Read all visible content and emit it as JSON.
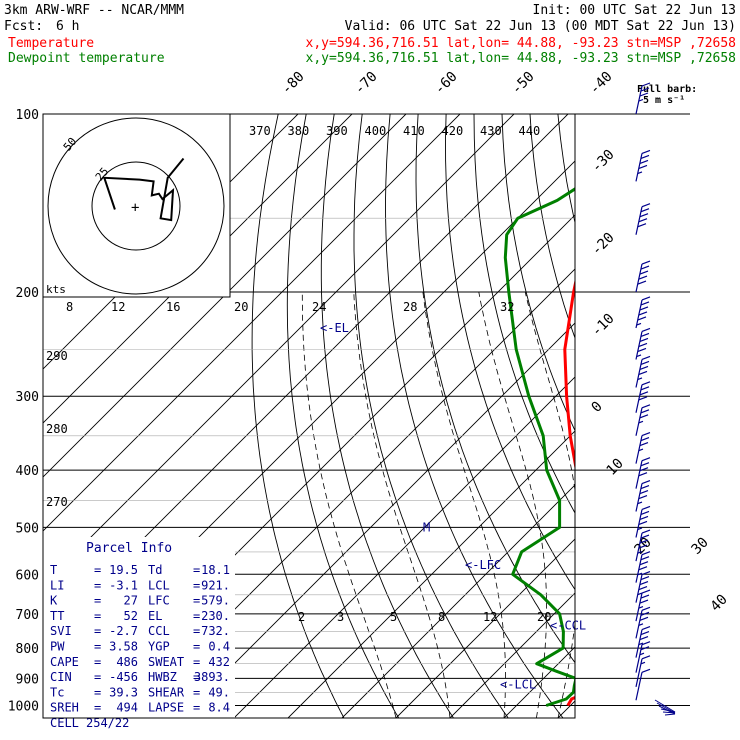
{
  "header": {
    "line1_left": "3km ARW-WRF -- NCAR/MMM",
    "line1_right": "Init: 00 UTC Sat 22 Jun 13",
    "line2_left_label": "Fcst:",
    "line2_left_value": "6 h",
    "line2_right": "Valid: 06 UTC Sat 22 Jun 13 (00 MDT Sat 22 Jun 13)",
    "line3_name": "Temperature",
    "line3_loc": "x,y=594.36,716.51   lat,lon= 44.88, -93.23  stn=MSP ,72658",
    "line4_name": "Dewpoint temperature",
    "line4_loc": "x,y=594.36,716.51   lat,lon= 44.88, -93.23  stn=MSP ,72658"
  },
  "colors": {
    "temperature": "#ff0000",
    "dewpoint": "#008000",
    "axis": "#000000",
    "annotation": "#00008b",
    "gridline": "#aaaaaa"
  },
  "wind_key": {
    "line1": "Full barb:",
    "line2": "5 m s⁻¹"
  },
  "parcel_info": {
    "title": "Parcel Info",
    "rows": [
      {
        "l": "T",
        "lv": "19.5",
        "r": "Td",
        "rv": "18.1"
      },
      {
        "l": "LI",
        "lv": "-3.1",
        "r": "LCL",
        "rv": "921."
      },
      {
        "l": "K",
        "lv": "27",
        "r": "LFC",
        "rv": "579."
      },
      {
        "l": "TT",
        "lv": "52",
        "r": "EL",
        "rv": "230."
      },
      {
        "l": "SVI",
        "lv": "-2.7",
        "r": "CCL",
        "rv": "732."
      },
      {
        "l": "PW",
        "lv": "3.58",
        "r": "YGP",
        "rv": "0.4"
      },
      {
        "l": "CAPE",
        "lv": "486",
        "r": "SWEAT",
        "rv": "432"
      },
      {
        "l": "CIN",
        "lv": "-456",
        "r": "HWBZ",
        "rv": "3893."
      },
      {
        "l": "Tc",
        "lv": "39.3",
        "r": "SHEAR",
        "rv": "49."
      },
      {
        "l": "SREH",
        "lv": "494",
        "r": "LAPSE",
        "rv": "8.4"
      },
      {
        "l": "CELL",
        "lv": "254/22",
        "r": "",
        "rv": ""
      }
    ]
  },
  "hodograph": {
    "kts_label": "kts",
    "ring_labels": [
      "50",
      "25"
    ],
    "profile_kts": [
      {
        "u": -12,
        "v": -2
      },
      {
        "u": -18,
        "v": 16
      },
      {
        "u": 2,
        "v": 15
      },
      {
        "u": 10,
        "v": 14
      },
      {
        "u": 9,
        "v": 6
      },
      {
        "u": 13,
        "v": 7
      },
      {
        "u": 15,
        "v": 4
      },
      {
        "u": 21,
        "v": 9
      },
      {
        "u": 20,
        "v": -8
      },
      {
        "u": 14,
        "v": -7
      },
      {
        "u": 18,
        "v": 16
      },
      {
        "u": 27,
        "v": 27
      }
    ]
  },
  "chart_data": {
    "type": "line",
    "title": "",
    "xlabel": "",
    "ylabel": "",
    "yscale": "log-pressure",
    "y_ticks": [
      100,
      200,
      300,
      400,
      500,
      600,
      700,
      800,
      900,
      1000
    ],
    "ylim": [
      1050,
      100
    ],
    "isotherm_labels": [
      "-80",
      "-70",
      "-60",
      "-50",
      "-40",
      "-30",
      "-20",
      "-10",
      "0",
      "10",
      "20",
      "30",
      "40"
    ],
    "theta_labels_top": [
      "370",
      "380",
      "390",
      "400",
      "410",
      "420",
      "430",
      "440"
    ],
    "dry_adiabat_labels_left": [
      "290",
      "280",
      "270"
    ],
    "mixing_ratio_top": [
      "8",
      "12",
      "16",
      "20",
      "24",
      "28",
      "32"
    ],
    "mixing_ratio_low": [
      "2",
      "3",
      "5",
      "8",
      "12",
      "20"
    ],
    "series": [
      {
        "name": "Temperature",
        "points": [
          {
            "p": 1000,
            "t": 19.5
          },
          {
            "p": 975,
            "t": 19.0
          },
          {
            "p": 950,
            "t": 20.5
          },
          {
            "p": 925,
            "t": 22.5
          },
          {
            "p": 900,
            "t": 23.5
          },
          {
            "p": 875,
            "t": 24.5
          },
          {
            "p": 850,
            "t": 21.5
          },
          {
            "p": 800,
            "t": 17.5
          },
          {
            "p": 750,
            "t": 14.0
          },
          {
            "p": 700,
            "t": 8.0
          },
          {
            "p": 650,
            "t": 4.0
          },
          {
            "p": 600,
            "t": -1.0
          },
          {
            "p": 550,
            "t": -6.0
          },
          {
            "p": 500,
            "t": -10.5
          },
          {
            "p": 450,
            "t": -16.5
          },
          {
            "p": 400,
            "t": -22.5
          },
          {
            "p": 350,
            "t": -30.0
          },
          {
            "p": 300,
            "t": -38.0
          },
          {
            "p": 250,
            "t": -47.0
          },
          {
            "p": 200,
            "t": -56.0
          },
          {
            "p": 175,
            "t": -61.0
          },
          {
            "p": 160,
            "t": -63.0
          },
          {
            "p": 150,
            "t": -60.0
          },
          {
            "p": 140,
            "t": -56.0
          },
          {
            "p": 130,
            "t": -56.0
          },
          {
            "p": 120,
            "t": -58.0
          },
          {
            "p": 110,
            "t": -57.0
          },
          {
            "p": 100,
            "t": -55.0
          }
        ]
      },
      {
        "name": "Dewpoint temperature",
        "points": [
          {
            "p": 1000,
            "t": 15.5
          },
          {
            "p": 975,
            "t": 18.0
          },
          {
            "p": 950,
            "t": 18.1
          },
          {
            "p": 925,
            "t": 17.0
          },
          {
            "p": 900,
            "t": 16.0
          },
          {
            "p": 875,
            "t": 11.0
          },
          {
            "p": 850,
            "t": 6.0
          },
          {
            "p": 800,
            "t": 8.0
          },
          {
            "p": 750,
            "t": 5.0
          },
          {
            "p": 700,
            "t": 1.0
          },
          {
            "p": 650,
            "t": -6.0
          },
          {
            "p": 600,
            "t": -15.0
          },
          {
            "p": 550,
            "t": -17.5
          },
          {
            "p": 500,
            "t": -15.0
          },
          {
            "p": 450,
            "t": -20.0
          },
          {
            "p": 400,
            "t": -28.0
          },
          {
            "p": 350,
            "t": -35.0
          },
          {
            "p": 300,
            "t": -45.0
          },
          {
            "p": 250,
            "t": -56.0
          },
          {
            "p": 200,
            "t": -68.0
          },
          {
            "p": 175,
            "t": -75.0
          },
          {
            "p": 160,
            "t": -79.0
          },
          {
            "p": 150,
            "t": -80.0
          },
          {
            "p": 140,
            "t": -76.0
          },
          {
            "p": 125,
            "t": -73.0
          },
          {
            "p": 110,
            "t": -71.5
          },
          {
            "p": 100,
            "t": -69.5
          }
        ]
      }
    ],
    "level_markers": [
      {
        "label": "<-EL",
        "p": 230
      },
      {
        "label": "M",
        "p": 500
      },
      {
        "label": "<-LFC",
        "p": 579
      },
      {
        "label": "<-CCL",
        "p": 732
      },
      {
        "label": "<-LCL",
        "p": 921
      }
    ],
    "wind_barbs": [
      {
        "p": 100,
        "kts": 35
      },
      {
        "p": 130,
        "kts": 45
      },
      {
        "p": 160,
        "kts": 50
      },
      {
        "p": 200,
        "kts": 50
      },
      {
        "p": 230,
        "kts": 55
      },
      {
        "p": 260,
        "kts": 55
      },
      {
        "p": 290,
        "kts": 45
      },
      {
        "p": 320,
        "kts": 40
      },
      {
        "p": 350,
        "kts": 35
      },
      {
        "p": 390,
        "kts": 35
      },
      {
        "p": 430,
        "kts": 40
      },
      {
        "p": 470,
        "kts": 45
      },
      {
        "p": 520,
        "kts": 45
      },
      {
        "p": 570,
        "kts": 45
      },
      {
        "p": 620,
        "kts": 45
      },
      {
        "p": 670,
        "kts": 45
      },
      {
        "p": 720,
        "kts": 35
      },
      {
        "p": 770,
        "kts": 35
      },
      {
        "p": 830,
        "kts": 35
      },
      {
        "p": 880,
        "kts": 25
      },
      {
        "p": 930,
        "kts": 15
      },
      {
        "p": 980,
        "kts": 10
      }
    ]
  }
}
